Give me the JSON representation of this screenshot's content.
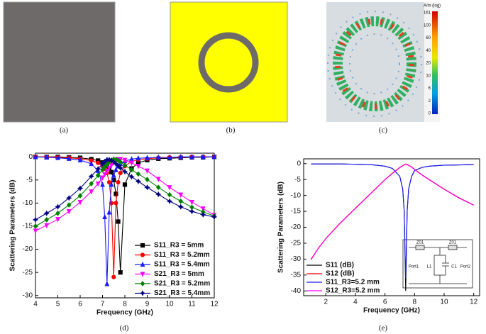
{
  "panels": {
    "a": "(a)",
    "b": "(b)",
    "c": "(c)",
    "d": "(d)",
    "e": "(e)"
  },
  "colorbar": {
    "title": "A/m (log)",
    "labels": [
      "161",
      "100",
      "60",
      "40",
      "20",
      "10",
      "6",
      "2",
      "0"
    ]
  },
  "inset": {
    "z_left": "Z01",
    "z_right": "Z01",
    "port_left": "Port1",
    "inductor": "L1",
    "capacitor": "C1",
    "port_right": "Port2"
  },
  "chart_data": [
    {
      "type": "line",
      "x_label": "Frequency (GHz)",
      "y_label": "Scattering Parameters (dB)",
      "xlim": [
        4,
        12
      ],
      "ylim": [
        -30.5,
        0.8
      ],
      "xticks": [
        4,
        5,
        6,
        7,
        8,
        9,
        10,
        11,
        12
      ],
      "yticks": [
        0,
        -5,
        -10,
        -15,
        -20,
        -25,
        -30
      ],
      "legend": "lower right",
      "markers": true,
      "x": [
        4,
        4.5,
        5,
        5.5,
        6,
        6.5,
        6.8,
        7,
        7.1,
        7.2,
        7.3,
        7.4,
        7.5,
        7.6,
        7.7,
        7.8,
        8,
        8.3,
        8.6,
        9,
        9.5,
        10,
        10.5,
        11,
        11.5,
        12
      ],
      "series": [
        {
          "name": "S11_R3 = 5mm",
          "color": "#000000",
          "marker": "square",
          "values": [
            0,
            0,
            0,
            -0.1,
            -0.2,
            -0.5,
            -0.8,
            -1.2,
            -1.5,
            -1.9,
            -2.5,
            -3.3,
            -5,
            -8,
            -14,
            -25,
            -6,
            -2.5,
            -1.3,
            -0.7,
            -0.4,
            -0.3,
            -0.2,
            -0.1,
            -0.1,
            0
          ]
        },
        {
          "name": "S11_R3 = 5.2mm",
          "color": "#ff0000",
          "marker": "circle",
          "values": [
            0,
            0,
            -0.1,
            -0.2,
            -0.4,
            -0.8,
            -1.3,
            -2,
            -2.6,
            -3.5,
            -5.5,
            -10,
            -26,
            -10,
            -5.5,
            -3.5,
            -2,
            -1,
            -0.6,
            -0.4,
            -0.2,
            -0.1,
            -0.1,
            0,
            0,
            0
          ]
        },
        {
          "name": "S11_R3 = 5.4mm",
          "color": "#1a1aff",
          "marker": "triangle",
          "values": [
            0,
            -0.1,
            -0.2,
            -0.4,
            -0.7,
            -1.5,
            -3,
            -6,
            -13,
            -27.5,
            -12,
            -6,
            -4,
            -2.8,
            -2,
            -1.5,
            -0.9,
            -0.5,
            -0.3,
            -0.2,
            -0.1,
            -0.1,
            0,
            0,
            0,
            0
          ]
        },
        {
          "name": "S21_R3 = 5mm",
          "color": "#ff00ff",
          "marker": "triangle-down",
          "values": [
            -16,
            -14.8,
            -13.5,
            -11.8,
            -9.8,
            -7.5,
            -5.8,
            -4.5,
            -3.8,
            -3.1,
            -2.4,
            -1.8,
            -1.2,
            -0.8,
            -0.5,
            -0.5,
            -0.7,
            -1.3,
            -2,
            -3,
            -4.8,
            -6.6,
            -8.2,
            -9.8,
            -11.2,
            -12.6
          ]
        },
        {
          "name": "S21_R3 = 5.2mm",
          "color": "#008000",
          "marker": "diamond",
          "values": [
            -15,
            -13.6,
            -12.2,
            -10.4,
            -8.4,
            -5.8,
            -4,
            -2.8,
            -2.2,
            -1.6,
            -1.1,
            -0.7,
            -0.5,
            -0.6,
            -0.8,
            -1.1,
            -1.8,
            -2.8,
            -3.7,
            -4.9,
            -6.6,
            -8.2,
            -9.6,
            -10.9,
            -11.9,
            -12.8
          ]
        },
        {
          "name": "S21_R3 = 5.4mm",
          "color": "#000080",
          "marker": "star",
          "values": [
            -13.6,
            -12.2,
            -10.8,
            -8.9,
            -6.8,
            -4.2,
            -2.6,
            -1.5,
            -1,
            -0.6,
            -0.6,
            -0.8,
            -1.1,
            -1.5,
            -1.9,
            -2.4,
            -3.2,
            -4.3,
            -5.3,
            -6.6,
            -8.1,
            -9.6,
            -10.8,
            -11.8,
            -12.5,
            -13
          ]
        }
      ]
    },
    {
      "type": "line",
      "x_label": "Frequency (GHz)",
      "y_label": "Scattering Parameters (dB)",
      "xlim": [
        0.5,
        12.4
      ],
      "ylim": [
        -41.5,
        1.5
      ],
      "xticks": [
        2,
        4,
        6,
        8,
        10,
        12
      ],
      "yticks": [
        0,
        -5,
        -10,
        -15,
        -20,
        -25,
        -30,
        -35,
        -40
      ],
      "legend": "lower left",
      "markers": false,
      "x": [
        1,
        1.5,
        2,
        3,
        4,
        5,
        6,
        6.5,
        7,
        7.2,
        7.3,
        7.4,
        7.5,
        7.6,
        7.8,
        8,
        8.5,
        9,
        10,
        11,
        12
      ],
      "series": [
        {
          "name": "S11 (dB)",
          "color": "#000000",
          "values": [
            -0.1,
            -0.1,
            -0.1,
            -0.1,
            -0.2,
            -0.3,
            -0.8,
            -1.5,
            -4,
            -8,
            -15,
            -40,
            -15,
            -8,
            -4,
            -2.2,
            -1.2,
            -0.8,
            -0.5,
            -0.4,
            -0.3
          ]
        },
        {
          "name": "S12 (dB)",
          "color": "#ff0000",
          "values": [
            -30,
            -26.5,
            -23.5,
            -18.5,
            -14,
            -9.5,
            -5,
            -3,
            -1.2,
            -0.6,
            -0.3,
            -0.1,
            -0.2,
            -0.5,
            -1,
            -1.8,
            -3.5,
            -5,
            -8,
            -10.7,
            -13
          ]
        },
        {
          "name": "S11_R3=5.2 mm",
          "color": "#1a1aff",
          "values": [
            -0.1,
            -0.1,
            -0.1,
            -0.1,
            -0.2,
            -0.3,
            -0.8,
            -1.5,
            -4,
            -8,
            -15,
            -36,
            -15,
            -8,
            -4,
            -2.2,
            -1.2,
            -0.8,
            -0.5,
            -0.4,
            -0.3
          ]
        },
        {
          "name": "S12_R3=5.2 mm",
          "color": "#ff00ff",
          "values": [
            -30.2,
            -26.6,
            -23.6,
            -18.6,
            -14.1,
            -9.6,
            -5.1,
            -3.1,
            -1.3,
            -0.7,
            -0.4,
            -0.2,
            -0.3,
            -0.6,
            -1.1,
            -1.9,
            -3.6,
            -5.1,
            -8.1,
            -10.8,
            -13.1
          ]
        }
      ]
    }
  ]
}
